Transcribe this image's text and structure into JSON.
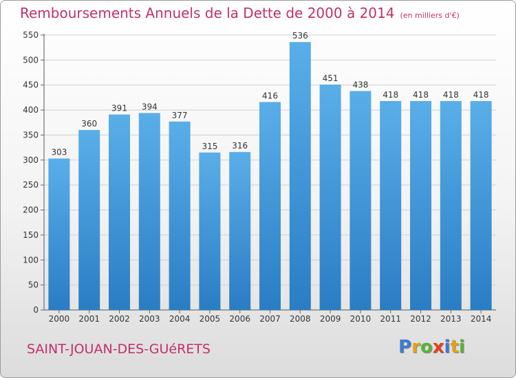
{
  "title": "Remboursements Annuels de la Dette de 2000 à 2014",
  "title_unit": "(en milliers d'€)",
  "town": "SAINT-JOUAN-DES-GUéRETS",
  "logo": {
    "letters": [
      {
        "ch": "P",
        "color": "#3b7bd4"
      },
      {
        "ch": "r",
        "color": "#e2a21a"
      },
      {
        "ch": "o",
        "color": "#59b33a"
      },
      {
        "ch": "x",
        "color": "#e0441c"
      },
      {
        "ch": "i",
        "color": "#3b7bd4"
      },
      {
        "ch": "t",
        "color": "#e2a21a"
      },
      {
        "ch": "i",
        "color": "#59b33a"
      }
    ]
  },
  "colors": {
    "bar_top": "#5aaee8",
    "bar_bottom": "#2a7dc4",
    "accent": "#c0306a",
    "grid": "#cfcfcf"
  },
  "chart_data": {
    "type": "bar",
    "title": "Remboursements Annuels de la Dette de 2000 à 2014",
    "categories": [
      "2000",
      "2001",
      "2002",
      "2003",
      "2004",
      "2005",
      "2006",
      "2007",
      "2008",
      "2009",
      "2010",
      "2011",
      "2012",
      "2013",
      "2014"
    ],
    "values": [
      303,
      360,
      391,
      394,
      377,
      315,
      316,
      416,
      536,
      451,
      438,
      418,
      418,
      418,
      418
    ],
    "ylim": [
      0,
      550
    ],
    "yticks": [
      0,
      50,
      100,
      150,
      200,
      250,
      300,
      350,
      400,
      450,
      500,
      550
    ],
    "grid": true,
    "xlabel": "",
    "ylabel": ""
  }
}
